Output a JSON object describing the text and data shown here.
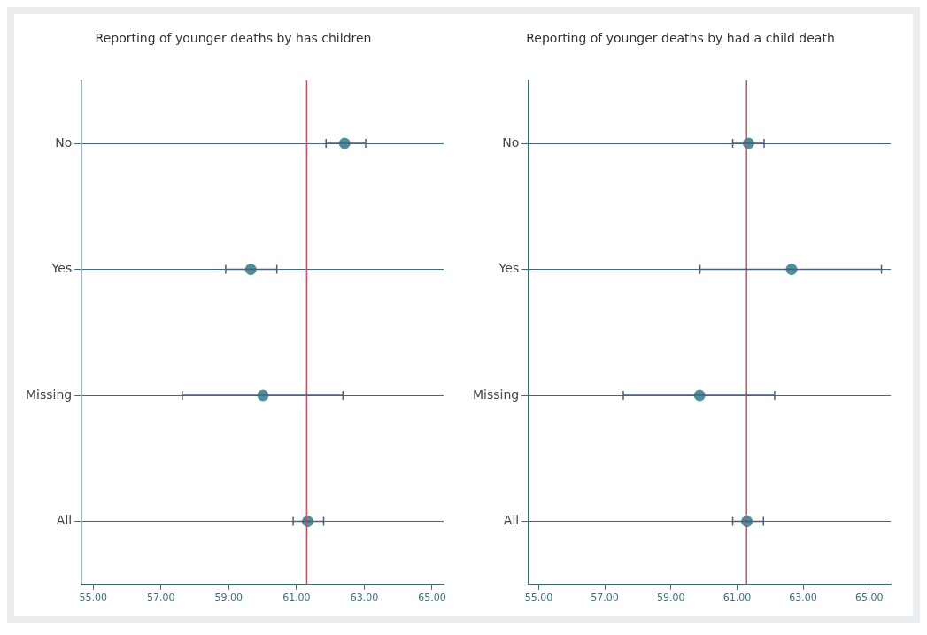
{
  "chart_data": [
    {
      "type": "scatter",
      "orientation": "horizontal",
      "title": "Reporting of younger deaths by has children",
      "categories": [
        "No",
        "Yes",
        "Missing",
        "All"
      ],
      "color": "#4a8f9a",
      "values": [
        62.42,
        59.65,
        60.01,
        61.33
      ],
      "errors": [
        [
          61.87,
          63.04
        ],
        [
          58.91,
          60.42
        ],
        [
          57.63,
          62.37
        ],
        [
          60.9,
          61.8
        ]
      ],
      "xlim": [
        54.66,
        65.34
      ],
      "xticks": [
        {
          "value": 55,
          "label": "55.00"
        },
        {
          "value": 57,
          "label": "57.00"
        },
        {
          "value": 59,
          "label": "59.00"
        },
        {
          "value": 61,
          "label": "61.00"
        },
        {
          "value": 63,
          "label": "63.00"
        },
        {
          "value": 65,
          "label": "65.00"
        }
      ],
      "ref_lines": [
        {
          "axis": "x",
          "value": 61.3,
          "color": "#d0505f"
        }
      ],
      "grid": "y",
      "marker": "circle",
      "legend": false
    },
    {
      "type": "scatter",
      "orientation": "horizontal",
      "title": "Reporting of younger deaths by had a child death",
      "categories": [
        "No",
        "Yes",
        "Missing",
        "All"
      ],
      "color": "#4a8f9a",
      "values": [
        61.35,
        62.65,
        59.87,
        61.3
      ],
      "errors": [
        [
          60.87,
          61.82
        ],
        [
          59.88,
          65.37
        ],
        [
          57.56,
          62.14
        ],
        [
          60.87,
          61.8
        ]
      ],
      "xlim": [
        54.7,
        65.65
      ],
      "xticks": [
        {
          "value": 55,
          "label": "55.00"
        },
        {
          "value": 57,
          "label": "57.00"
        },
        {
          "value": 59,
          "label": "59.00"
        },
        {
          "value": 61,
          "label": "61.00"
        },
        {
          "value": 63,
          "label": "63.00"
        },
        {
          "value": 65,
          "label": "65.00"
        }
      ],
      "ref_lines": [
        {
          "axis": "x",
          "value": 61.29,
          "color": "#d0505f"
        }
      ],
      "grid": "y",
      "marker": "circle",
      "legend": false
    }
  ]
}
